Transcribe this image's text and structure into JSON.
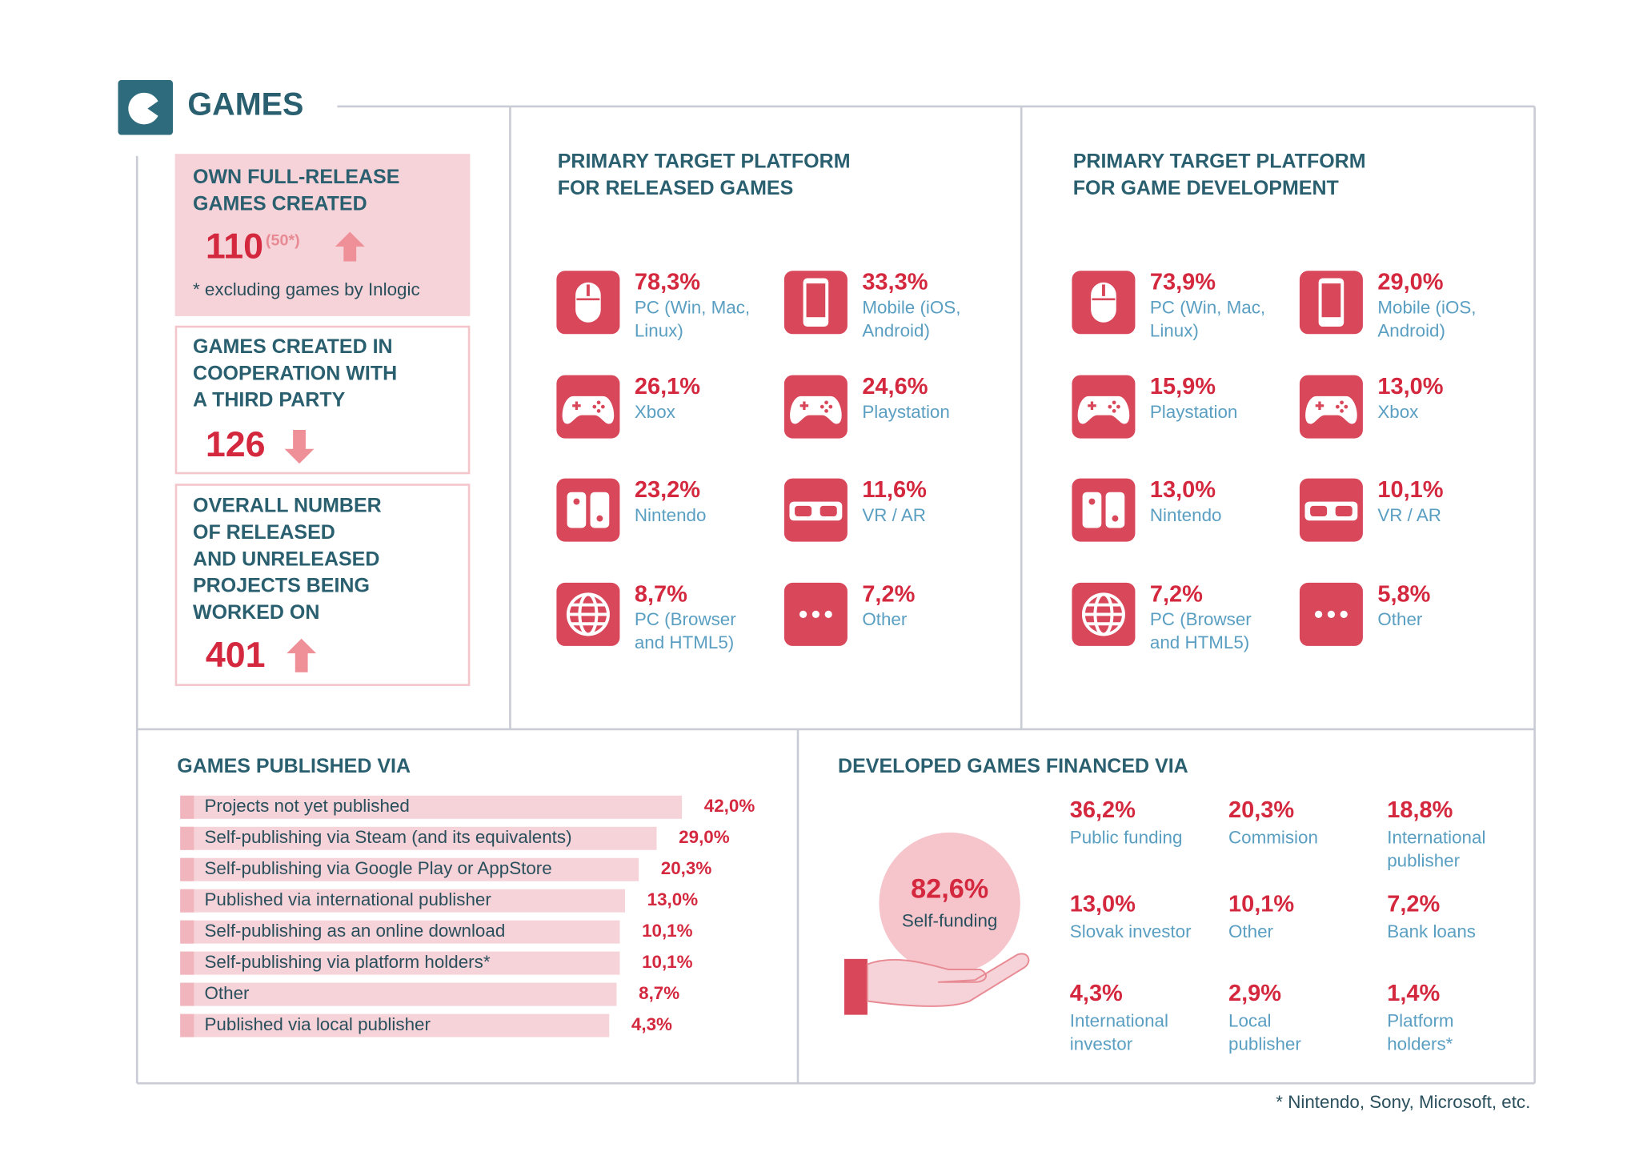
{
  "header": {
    "title": "GAMES"
  },
  "stats": [
    {
      "title_lines": [
        "OWN FULL-RELEASE",
        "GAMES CREATED"
      ],
      "value": "110",
      "sup": "(50*)",
      "note": "* excluding games by Inlogic"
    },
    {
      "title_lines": [
        "GAMES CREATED IN",
        "COOPERATION WITH",
        "A THIRD PARTY"
      ],
      "value": "126"
    },
    {
      "title_lines": [
        "OVERALL NUMBER",
        "OF RELEASED",
        "AND UNRELEASED",
        "PROJECTS BEING",
        "WORKED ON"
      ],
      "value": "401"
    }
  ],
  "platforms": [
    {
      "title_lines": [
        "PRIMARY TARGET PLATFORM",
        "FOR RELEASED GAMES"
      ],
      "items": [
        {
          "value": "78,3%",
          "label_lines": [
            "PC (Win, Mac,",
            "Linux)"
          ]
        },
        {
          "value": "33,3%",
          "label_lines": [
            "Mobile (iOS,",
            "Android)"
          ]
        },
        {
          "value": "26,1%",
          "label_lines": [
            "Xbox"
          ]
        },
        {
          "value": "24,6%",
          "label_lines": [
            "Playstation"
          ]
        },
        {
          "value": "23,2%",
          "label_lines": [
            "Nintendo"
          ]
        },
        {
          "value": "11,6%",
          "label_lines": [
            "VR / AR"
          ]
        },
        {
          "value": "8,7%",
          "label_lines": [
            "PC (Browser",
            "and HTML5)"
          ]
        },
        {
          "value": "7,2%",
          "label_lines": [
            "Other"
          ]
        }
      ]
    },
    {
      "title_lines": [
        "PRIMARY TARGET PLATFORM",
        "FOR GAME DEVELOPMENT"
      ],
      "items": [
        {
          "value": "73,9%",
          "label_lines": [
            "PC (Win, Mac,",
            "Linux)"
          ]
        },
        {
          "value": "29,0%",
          "label_lines": [
            "Mobile (iOS,",
            "Android)"
          ]
        },
        {
          "value": "15,9%",
          "label_lines": [
            "Playstation"
          ]
        },
        {
          "value": "13,0%",
          "label_lines": [
            "Xbox"
          ]
        },
        {
          "value": "13,0%",
          "label_lines": [
            "Nintendo"
          ]
        },
        {
          "value": "10,1%",
          "label_lines": [
            "VR / AR"
          ]
        },
        {
          "value": "7,2%",
          "label_lines": [
            "PC (Browser",
            "and HTML5)"
          ]
        },
        {
          "value": "5,8%",
          "label_lines": [
            "Other"
          ]
        }
      ]
    }
  ],
  "published_via": {
    "title": "GAMES PUBLISHED VIA",
    "items": [
      {
        "label": "Projects not yet published",
        "value": "42,0%"
      },
      {
        "label": "Self-publishing via Steam (and its equivalents)",
        "value": "29,0%"
      },
      {
        "label": "Self-publishing via Google Play or AppStore",
        "value": "20,3%"
      },
      {
        "label": "Published via international publisher",
        "value": "13,0%"
      },
      {
        "label": "Self-publishing as an online download",
        "value": "10,1%"
      },
      {
        "label": "Self-publishing via platform holders*",
        "value": "10,1%"
      },
      {
        "label": "Other",
        "value": "8,7%"
      },
      {
        "label": "Published via local publisher",
        "value": "4,3%"
      }
    ]
  },
  "financed_via": {
    "title": "DEVELOPED GAMES FINANCED VIA",
    "main": {
      "value": "82,6%",
      "label": "Self-funding"
    },
    "items": [
      {
        "value": "36,2%",
        "label_lines": [
          "Public funding"
        ]
      },
      {
        "value": "20,3%",
        "label_lines": [
          "Commision"
        ]
      },
      {
        "value": "18,8%",
        "label_lines": [
          "International",
          "publisher"
        ]
      },
      {
        "value": "13,0%",
        "label_lines": [
          "Slovak investor"
        ]
      },
      {
        "value": "10,1%",
        "label_lines": [
          "Other"
        ]
      },
      {
        "value": "7,2%",
        "label_lines": [
          "Bank loans"
        ]
      },
      {
        "value": "4,3%",
        "label_lines": [
          "International",
          "investor"
        ]
      },
      {
        "value": "2,9%",
        "label_lines": [
          "Local",
          "publisher"
        ]
      },
      {
        "value": "1,4%",
        "label_lines": [
          "Platform",
          "holders*"
        ]
      }
    ]
  },
  "footnote": "* Nintendo, Sony, Microsoft, etc."
}
